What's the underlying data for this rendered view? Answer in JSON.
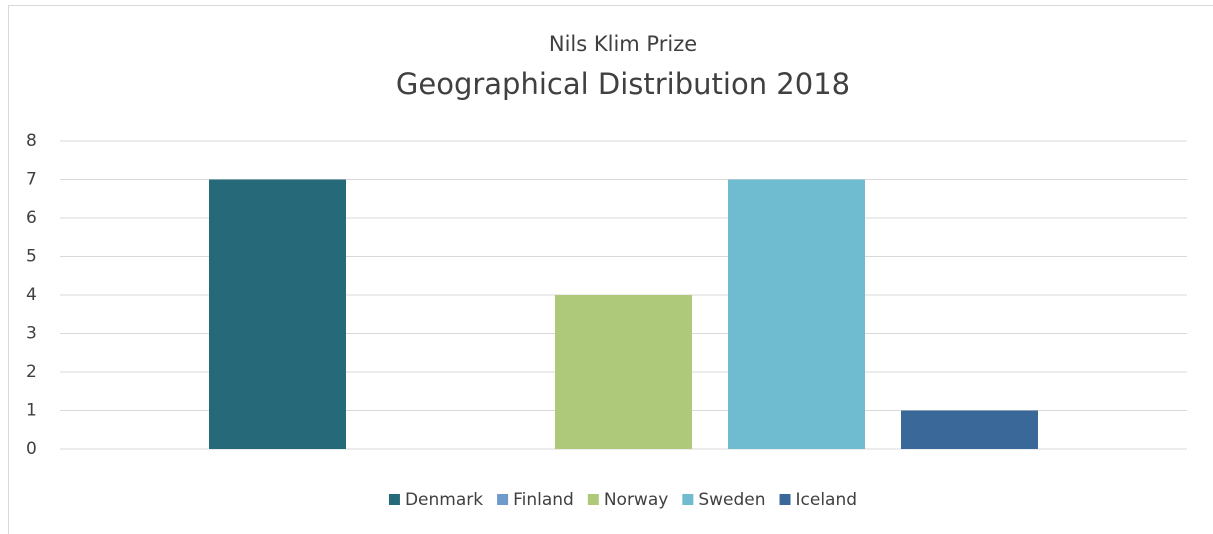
{
  "chart_data": {
    "type": "bar",
    "title": "Nils Klim Prize",
    "subtitle": "Geographical Distribution 2018",
    "categories": [
      null
    ],
    "series": [
      {
        "name": "Denmark",
        "color": "#266a7a",
        "values": [
          7
        ]
      },
      {
        "name": "Finland",
        "color": "#6f9bcc",
        "values": [
          0
        ]
      },
      {
        "name": "Norway",
        "color": "#aec97a",
        "values": [
          4
        ]
      },
      {
        "name": "Sweden",
        "color": "#6fbbd0",
        "values": [
          7
        ]
      },
      {
        "name": "Iceland",
        "color": "#3a6898",
        "values": [
          1
        ]
      }
    ],
    "ylim": [
      0,
      8
    ],
    "yticks": [
      0,
      1,
      2,
      3,
      4,
      5,
      6,
      7,
      8
    ],
    "grid": true,
    "legend": "bottom"
  }
}
